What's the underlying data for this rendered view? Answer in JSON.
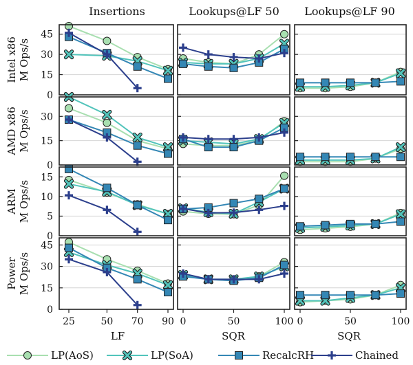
{
  "chart_data": {
    "type": "line",
    "column_titles": [
      "Insertions",
      "Lookups@LF 50",
      "Lookups@LF 90"
    ],
    "row_labels": [
      "Intel x86",
      "AMD x86",
      "ARM",
      "Power"
    ],
    "ylabel_unit": "M Ops/s",
    "xlabels": [
      "LF",
      "SQR",
      "SQR"
    ],
    "x_ticks": [
      [
        25,
        50,
        70,
        90
      ],
      [
        0,
        50,
        100
      ],
      [
        0,
        50,
        100
      ]
    ],
    "legend": [
      {
        "name": "LP(AoS)",
        "color": "#a8dfb0",
        "marker": "circle"
      },
      {
        "name": "LP(SoA)",
        "color": "#52c4bb",
        "marker": "x"
      },
      {
        "name": "RecalcRH",
        "color": "#3487b5",
        "marker": "square"
      },
      {
        "name": "Chained",
        "color": "#2c3f8c",
        "marker": "plus"
      }
    ],
    "rows": [
      {
        "ylim": [
          0,
          52
        ],
        "yticks": [
          0,
          15,
          30,
          45
        ],
        "panels": [
          {
            "x": [
              25,
              50,
              70,
              90
            ],
            "series": [
              [
                51,
                40,
                28,
                19
              ],
              [
                30,
                29,
                25,
                18
              ],
              [
                43,
                31,
                21,
                12
              ],
              [
                46,
                30,
                5,
                null
              ]
            ]
          },
          {
            "x": [
              0,
              25,
              50,
              75,
              100
            ],
            "series": [
              [
                27,
                24,
                23,
                30,
                45
              ],
              [
                24,
                23,
                23,
                27,
                38
              ],
              [
                23,
                21,
                20,
                24,
                34
              ],
              [
                35,
                30,
                28,
                27,
                31
              ]
            ]
          },
          {
            "x": [
              0,
              25,
              50,
              75,
              100
            ],
            "series": [
              [
                5,
                5,
                6,
                9,
                17
              ],
              [
                6,
                6,
                7,
                9,
                16
              ],
              [
                9,
                9,
                9,
                9,
                10
              ],
              [
                null,
                null,
                null,
                null,
                null
              ]
            ]
          }
        ]
      },
      {
        "ylim": [
          0,
          42
        ],
        "yticks": [
          0,
          15,
          30
        ],
        "panels": [
          {
            "x": [
              25,
              50,
              70,
              90
            ],
            "series": [
              [
                35,
                26,
                15,
                10
              ],
              [
                42,
                31,
                17,
                11
              ],
              [
                28,
                20,
                12,
                7
              ],
              [
                28,
                17,
                2,
                null
              ]
            ]
          },
          {
            "x": [
              0,
              25,
              50,
              75,
              100
            ],
            "series": [
              [
                13,
                12,
                12,
                15,
                27
              ],
              [
                15,
                14,
                13,
                16,
                26
              ],
              [
                16,
                11,
                11,
                15,
                23
              ],
              [
                17,
                16,
                16,
                17,
                20
              ]
            ]
          },
          {
            "x": [
              0,
              25,
              50,
              75,
              100
            ],
            "series": [
              [
                2,
                2,
                2,
                4,
                10
              ],
              [
                3,
                3,
                3,
                4,
                11
              ],
              [
                5,
                5,
                5,
                5,
                5
              ],
              [
                null,
                null,
                null,
                null,
                null
              ]
            ]
          }
        ]
      },
      {
        "ylim": [
          0,
          17.5
        ],
        "yticks": [
          0,
          5,
          10,
          15
        ],
        "panels": [
          {
            "x": [
              25,
              50,
              70,
              90
            ],
            "series": [
              [
                14.2,
                11.0,
                8.0,
                5.5
              ],
              [
                13.2,
                11.2,
                7.8,
                5.6
              ],
              [
                17.0,
                12.2,
                7.8,
                4.0
              ],
              [
                10.3,
                6.6,
                1.0,
                null
              ]
            ]
          },
          {
            "x": [
              0,
              25,
              50,
              75,
              100
            ],
            "series": [
              [
                6.2,
                5.6,
                5.5,
                7.8,
                15.3
              ],
              [
                7.0,
                6.0,
                5.6,
                8.6,
                12.0
              ],
              [
                6.8,
                7.2,
                8.3,
                9.4,
                12.0
              ],
              [
                6.9,
                5.8,
                5.9,
                6.6,
                7.6
              ]
            ]
          },
          {
            "x": [
              0,
              25,
              50,
              75,
              100
            ],
            "series": [
              [
                1.5,
                1.9,
                2.3,
                3.0,
                5.8
              ],
              [
                2.0,
                2.3,
                2.6,
                3.0,
                5.5
              ],
              [
                2.4,
                2.7,
                3.0,
                3.0,
                3.6
              ],
              [
                null,
                null,
                null,
                null,
                null
              ]
            ]
          }
        ]
      },
      {
        "ylim": [
          0,
          50
        ],
        "yticks": [
          0,
          15,
          30,
          45
        ],
        "panels": [
          {
            "x": [
              25,
              50,
              70,
              90
            ],
            "series": [
              [
                47,
                35,
                27,
                18
              ],
              [
                40,
                31,
                25,
                17
              ],
              [
                43,
                29,
                21,
                12
              ],
              [
                35,
                26,
                3,
                null
              ]
            ]
          },
          {
            "x": [
              0,
              25,
              50,
              75,
              100
            ],
            "series": [
              [
                24,
                21,
                20,
                23,
                33
              ],
              [
                24,
                21,
                21,
                23,
                30
              ],
              [
                23,
                21,
                20,
                22,
                31
              ],
              [
                25,
                21,
                21,
                21,
                25
              ]
            ]
          },
          {
            "x": [
              0,
              25,
              50,
              75,
              100
            ],
            "series": [
              [
                5,
                6,
                7,
                10,
                17
              ],
              [
                6,
                6,
                8,
                10,
                15
              ],
              [
                10,
                10,
                10,
                10,
                11
              ],
              [
                null,
                null,
                null,
                null,
                null
              ]
            ]
          }
        ]
      }
    ]
  }
}
